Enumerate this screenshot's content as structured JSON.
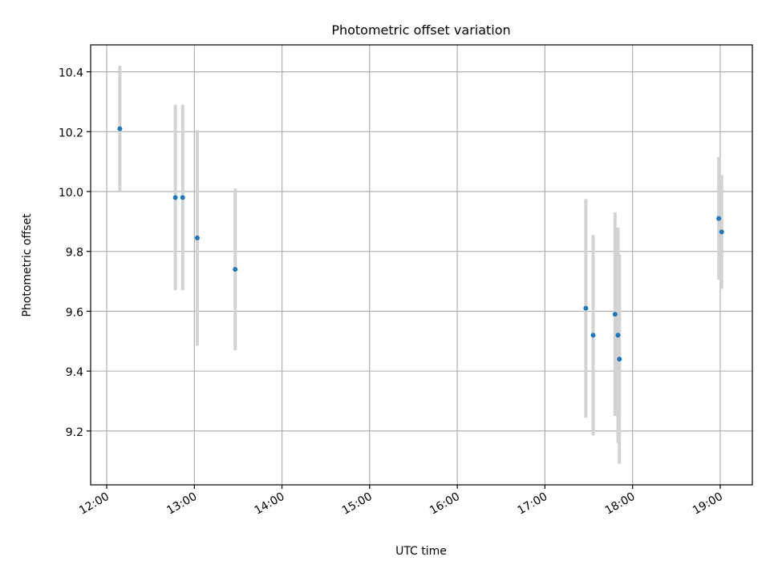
{
  "chart_data": {
    "type": "scatter",
    "title": "Photometric offset variation",
    "xlabel": "UTC time",
    "ylabel": "Photometric offset",
    "grid": true,
    "xlim": [
      "11:49",
      "19:22"
    ],
    "ylim": [
      9.02,
      10.49
    ],
    "x_ticks": [
      "12:00",
      "13:00",
      "14:00",
      "15:00",
      "16:00",
      "17:00",
      "18:00",
      "19:00"
    ],
    "y_ticks": [
      9.2,
      9.4,
      9.6,
      9.8,
      10.0,
      10.2,
      10.4
    ],
    "y_tick_labels": [
      "9.2",
      "9.4",
      "9.6",
      "9.8",
      "10.0",
      "10.2",
      "10.4"
    ],
    "series": [
      {
        "points": [
          {
            "x": "12:09",
            "y": 10.21,
            "err": 0.21
          },
          {
            "x": "12:47",
            "y": 9.98,
            "err": 0.31
          },
          {
            "x": "12:52",
            "y": 9.98,
            "err": 0.31
          },
          {
            "x": "13:02",
            "y": 9.845,
            "err": 0.36
          },
          {
            "x": "13:28",
            "y": 9.74,
            "err": 0.27
          },
          {
            "x": "17:28",
            "y": 9.61,
            "err": 0.365
          },
          {
            "x": "17:33",
            "y": 9.52,
            "err": 0.335
          },
          {
            "x": "17:48",
            "y": 9.59,
            "err": 0.34
          },
          {
            "x": "17:50",
            "y": 9.52,
            "err": 0.36
          },
          {
            "x": "17:51",
            "y": 9.44,
            "err": 0.35
          },
          {
            "x": "18:59",
            "y": 9.91,
            "err": 0.205
          },
          {
            "x": "19:01",
            "y": 9.865,
            "err": 0.19
          }
        ]
      }
    ],
    "colors": {
      "marker": "#1f77b4",
      "errorbar": "#d3d3d3",
      "grid": "#b0b0b0"
    }
  }
}
